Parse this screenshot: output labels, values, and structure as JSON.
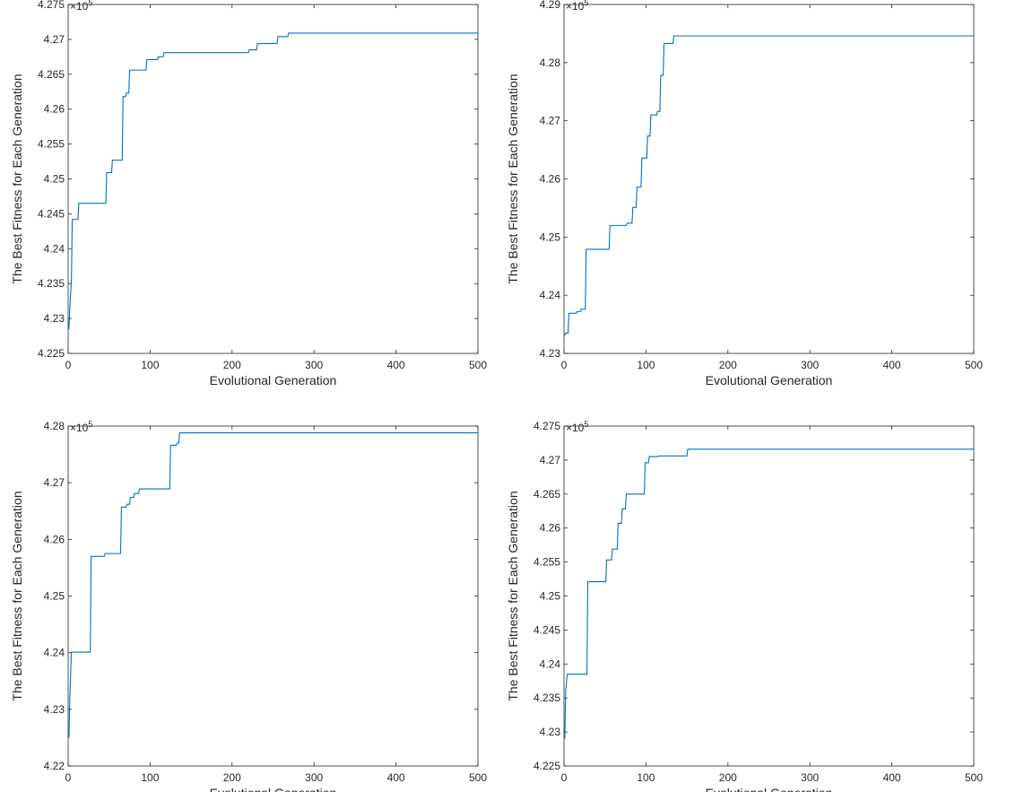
{
  "chart_data": [
    {
      "type": "line",
      "xlabel": "Evolutional Generation",
      "ylabel": "The Best Fitness for Each Generation",
      "exponent_label": "×10",
      "exponent_power": "5",
      "xlim": [
        0,
        500
      ],
      "ylim": [
        4.225,
        4.275
      ],
      "xticks": [
        0,
        100,
        200,
        300,
        400,
        500
      ],
      "xtick_labels": [
        "0",
        "100",
        "200",
        "300",
        "400",
        "500"
      ],
      "yticks": [
        4.225,
        4.23,
        4.235,
        4.24,
        4.245,
        4.25,
        4.255,
        4.26,
        4.265,
        4.27,
        4.275
      ],
      "ytick_labels": [
        "4.225",
        "4.23",
        "4.235",
        "4.24",
        "4.245",
        "4.25",
        "4.255",
        "4.26",
        "4.265",
        "4.27",
        "4.275"
      ],
      "grid": false,
      "line_color": "#0072bd",
      "x": [
        1,
        2,
        4,
        5,
        12,
        13,
        46,
        47,
        53,
        54,
        66,
        67,
        70,
        71,
        74,
        75,
        95,
        96,
        109,
        110,
        116,
        117,
        220,
        221,
        230,
        231,
        255,
        256,
        268,
        269,
        500
      ],
      "y": [
        4.2285,
        4.2315,
        4.2355,
        4.2442,
        4.2442,
        4.2465,
        4.2465,
        4.2509,
        4.2509,
        4.2527,
        4.2527,
        4.2618,
        4.2618,
        4.2623,
        4.2623,
        4.2656,
        4.2656,
        4.2671,
        4.2671,
        4.2675,
        4.2675,
        4.2681,
        4.2681,
        4.2685,
        4.2685,
        4.2694,
        4.2694,
        4.2704,
        4.2704,
        4.2709,
        4.2709
      ]
    },
    {
      "type": "line",
      "xlabel": "Evolutional Generation",
      "ylabel": "The Best Fitness for Each Generation",
      "exponent_label": "×10",
      "exponent_power": "5",
      "xlim": [
        0,
        500
      ],
      "ylim": [
        4.23,
        4.29
      ],
      "xticks": [
        0,
        100,
        200,
        300,
        400,
        500
      ],
      "xtick_labels": [
        "0",
        "100",
        "200",
        "300",
        "400",
        "500"
      ],
      "yticks": [
        4.23,
        4.24,
        4.25,
        4.26,
        4.27,
        4.28,
        4.29
      ],
      "ytick_labels": [
        "4.23",
        "4.24",
        "4.25",
        "4.26",
        "4.27",
        "4.28",
        "4.29"
      ],
      "grid": false,
      "line_color": "#0072bd",
      "x": [
        1,
        2,
        5,
        6,
        15,
        16,
        20,
        21,
        26,
        27,
        55,
        56,
        76,
        77,
        83,
        84,
        88,
        89,
        94,
        95,
        101,
        102,
        105,
        106,
        113,
        114,
        117,
        118,
        121,
        122,
        133,
        134,
        143,
        144,
        500
      ],
      "y": [
        4.2331,
        4.2335,
        4.2335,
        4.2369,
        4.2369,
        4.2372,
        4.2372,
        4.2376,
        4.2376,
        4.2479,
        4.2479,
        4.252,
        4.252,
        4.2524,
        4.2524,
        4.2551,
        4.2551,
        4.2586,
        4.2586,
        4.2636,
        4.2636,
        4.2674,
        4.2674,
        4.271,
        4.271,
        4.2716,
        4.2716,
        4.2778,
        4.2778,
        4.2833,
        4.2833,
        4.2846,
        4.2846,
        4.2846,
        4.2846
      ]
    },
    {
      "type": "line",
      "xlabel": "Evolutional Generation",
      "ylabel": "The Best Fitness for Each Generation",
      "exponent_label": "×10",
      "exponent_power": "5",
      "xlim": [
        0,
        500
      ],
      "ylim": [
        4.22,
        4.28
      ],
      "xticks": [
        0,
        100,
        200,
        300,
        400,
        500
      ],
      "xtick_labels": [
        "0",
        "100",
        "200",
        "300",
        "400",
        "500"
      ],
      "yticks": [
        4.22,
        4.23,
        4.24,
        4.25,
        4.26,
        4.27,
        4.28
      ],
      "ytick_labels": [
        "4.22",
        "4.23",
        "4.24",
        "4.25",
        "4.26",
        "4.27",
        "4.28"
      ],
      "grid": false,
      "line_color": "#0072bd",
      "x": [
        1,
        2,
        4,
        5,
        27,
        28,
        44,
        45,
        64,
        65,
        71,
        72,
        75,
        76,
        80,
        81,
        86,
        87,
        124,
        125,
        132,
        133,
        135,
        136,
        500
      ],
      "y": [
        4.225,
        4.232,
        4.2401,
        4.2401,
        4.2401,
        4.257,
        4.257,
        4.2575,
        4.2575,
        4.2657,
        4.2657,
        4.2662,
        4.2662,
        4.2674,
        4.2674,
        4.2681,
        4.2681,
        4.2689,
        4.2689,
        4.2766,
        4.2766,
        4.277,
        4.277,
        4.2788,
        4.2788
      ]
    },
    {
      "type": "line",
      "xlabel": "Evolutional Generation",
      "ylabel": "The Best Fitness for Each Generation",
      "exponent_label": "×10",
      "exponent_power": "5",
      "xlim": [
        0,
        500
      ],
      "ylim": [
        4.225,
        4.275
      ],
      "xticks": [
        0,
        100,
        200,
        300,
        400,
        500
      ],
      "xtick_labels": [
        "0",
        "100",
        "200",
        "300",
        "400",
        "500"
      ],
      "yticks": [
        4.225,
        4.23,
        4.235,
        4.24,
        4.245,
        4.25,
        4.255,
        4.26,
        4.265,
        4.27,
        4.275
      ],
      "ytick_labels": [
        "4.225",
        "4.23",
        "4.235",
        "4.24",
        "4.245",
        "4.25",
        "4.255",
        "4.26",
        "4.265",
        "4.27",
        "4.275"
      ],
      "grid": false,
      "line_color": "#0072bd",
      "x": [
        1,
        2,
        4,
        5,
        28,
        29,
        51,
        52,
        58,
        59,
        65,
        66,
        70,
        71,
        75,
        76,
        83,
        84,
        98,
        99,
        103,
        104,
        115,
        116,
        150,
        151,
        500
      ],
      "y": [
        4.229,
        4.236,
        4.2385,
        4.2385,
        4.2385,
        4.2521,
        4.2521,
        4.2553,
        4.2553,
        4.2569,
        4.2569,
        4.2607,
        4.2607,
        4.2628,
        4.2628,
        4.265,
        4.265,
        4.265,
        4.265,
        4.2696,
        4.2696,
        4.2705,
        4.2705,
        4.2706,
        4.2706,
        4.2716,
        4.2716
      ]
    }
  ]
}
